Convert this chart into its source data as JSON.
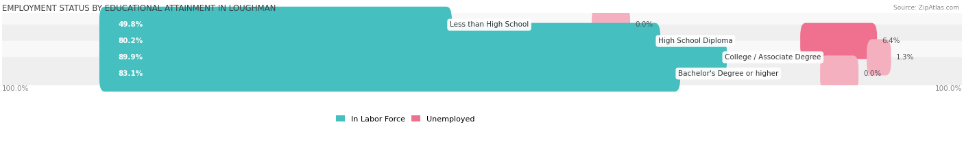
{
  "title": "EMPLOYMENT STATUS BY EDUCATIONAL ATTAINMENT IN LOUGHMAN",
  "source": "Source: ZipAtlas.com",
  "categories": [
    "Less than High School",
    "High School Diploma",
    "College / Associate Degree",
    "Bachelor's Degree or higher"
  ],
  "in_labor_force": [
    49.8,
    80.2,
    89.9,
    83.1
  ],
  "unemployed": [
    0.0,
    6.4,
    1.3,
    0.0
  ],
  "labor_color": "#45BFBF",
  "unemployed_color": "#F07090",
  "unemployed_color_light": "#F5B0C0",
  "row_bg_even": "#EFEFEF",
  "row_bg_odd": "#F8F8F8",
  "label_color": "#555555",
  "title_color": "#404040",
  "source_color": "#888888",
  "axis_label_color": "#888888",
  "legend_labor": "In Labor Force",
  "legend_unemployed": "Unemployed",
  "bar_height": 0.62,
  "max_val": 100.0,
  "figsize": [
    14.06,
    2.33
  ],
  "dpi": 100
}
